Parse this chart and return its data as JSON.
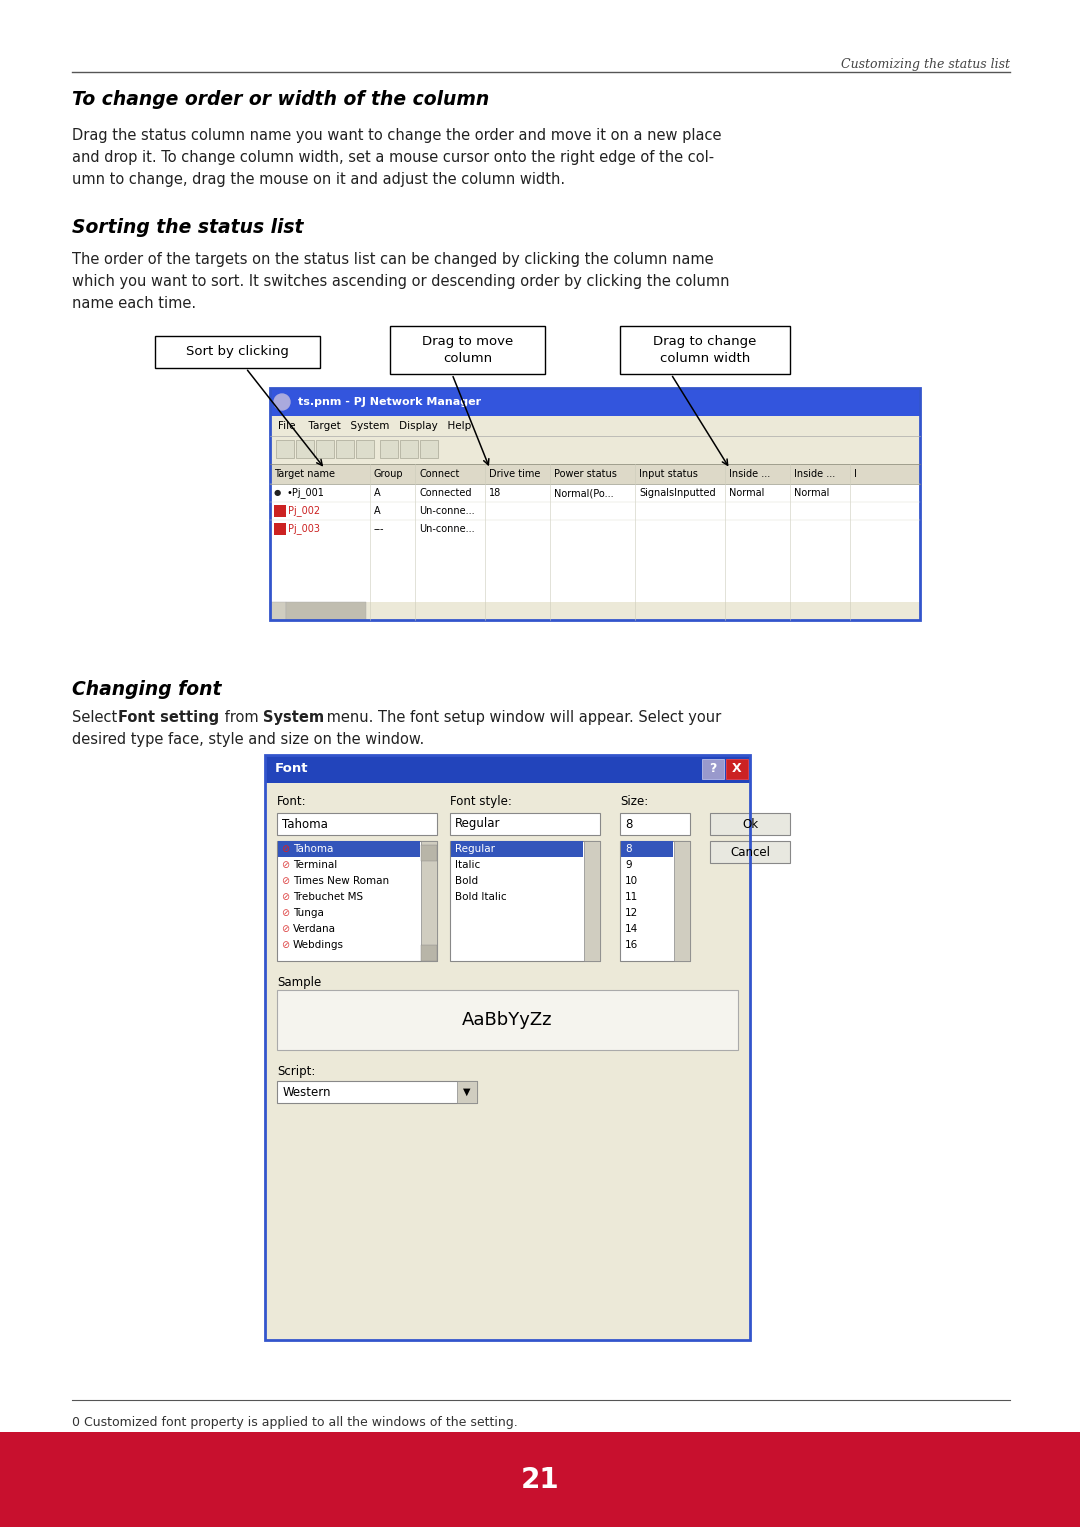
{
  "page_width": 10.8,
  "page_height": 15.27,
  "bg_color": "#ffffff",
  "header_italic": "Customizing the status list",
  "section1_title": "To change order or width of the column",
  "section1_body_l1": "Drag the status column name you want to change the order and move it on a new place",
  "section1_body_l2": "and drop it. To change column width, set a mouse cursor onto the right edge of the col-",
  "section1_body_l3": "umn to change, drag the mouse on it and adjust the column width.",
  "section2_title": "Sorting the status list",
  "section2_body_l1": "The order of the targets on the status list can be changed by clicking the column name",
  "section2_body_l2": "which you want to sort. It switches ascending or descending order by clicking the column",
  "section2_body_l3": "name each time.",
  "label1": "Sort by clicking",
  "label2": "Drag to move\ncolumn",
  "label3": "Drag to change\ncolumn width",
  "section3_title": "Changing font",
  "footer_note": "0 Customized font property is applied to all the windows of the setting.",
  "page_number": "21",
  "footer_bar_color": "#c8102e"
}
